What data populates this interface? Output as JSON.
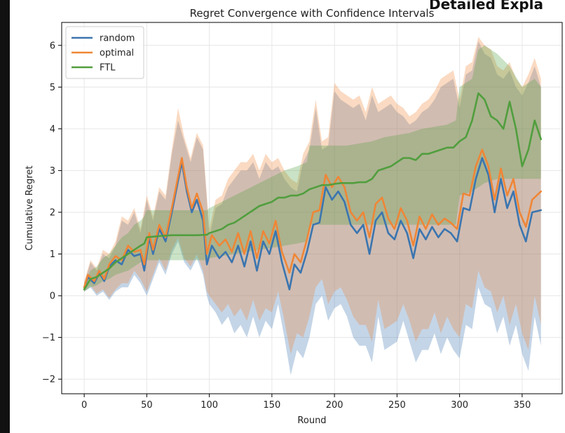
{
  "header_partial": "Detailed Expla",
  "chart_data": {
    "type": "line",
    "title": "Regret Convergence with Confidence Intervals",
    "xlabel": "Round",
    "ylabel": "Cumulative Regret",
    "xlim": [
      -18,
      382
    ],
    "ylim": [
      -2.35,
      6.55
    ],
    "xticks": [
      0,
      50,
      100,
      150,
      200,
      250,
      300,
      350
    ],
    "yticks": [
      -2,
      -1,
      0,
      1,
      2,
      3,
      4,
      5,
      6
    ],
    "xtick_labels": [
      "0",
      "50",
      "100",
      "150",
      "200",
      "250",
      "300",
      "350"
    ],
    "ytick_labels": [
      "−2",
      "−1",
      "0",
      "1",
      "2",
      "3",
      "4",
      "5",
      "6"
    ],
    "grid": true,
    "legend_position": "top-left",
    "colors": {
      "random": "#3b75af",
      "optimal": "#ef8636",
      "FTL": "#519e3e"
    },
    "series": [
      {
        "name": "random",
        "x": [
          0,
          3,
          8,
          12,
          16,
          20,
          25,
          30,
          35,
          40,
          45,
          48,
          52,
          55,
          60,
          65,
          70,
          75,
          78,
          82,
          86,
          90,
          95,
          98,
          102,
          108,
          113,
          118,
          123,
          128,
          133,
          138,
          143,
          148,
          153,
          158,
          164,
          168,
          173,
          178,
          183,
          188,
          193,
          198,
          203,
          208,
          213,
          218,
          223,
          228,
          233,
          238,
          243,
          248,
          253,
          258,
          263,
          268,
          273,
          278,
          283,
          288,
          293,
          298,
          303,
          308,
          313,
          318,
          323,
          328,
          333,
          338,
          343,
          348,
          353,
          358,
          365
        ],
        "y": [
          0.2,
          0.45,
          0.3,
          0.55,
          0.35,
          0.7,
          0.85,
          0.75,
          1.1,
          0.95,
          1.0,
          0.6,
          1.4,
          1.0,
          1.6,
          1.3,
          2.0,
          2.75,
          3.2,
          2.5,
          2.0,
          2.3,
          1.8,
          0.75,
          1.2,
          0.9,
          1.05,
          0.8,
          1.2,
          0.7,
          1.3,
          0.6,
          1.3,
          1.0,
          1.55,
          0.8,
          0.15,
          0.75,
          0.55,
          1.05,
          1.7,
          1.75,
          2.6,
          2.3,
          2.5,
          2.25,
          1.7,
          1.5,
          1.7,
          1.0,
          1.8,
          2.0,
          1.5,
          1.35,
          1.8,
          1.5,
          0.9,
          1.6,
          1.35,
          1.65,
          1.4,
          1.6,
          1.5,
          1.3,
          2.1,
          2.05,
          2.8,
          3.3,
          2.9,
          2.0,
          2.8,
          2.1,
          2.5,
          1.7,
          1.3,
          2.0,
          2.05
        ]
      },
      {
        "name": "optimal",
        "x": [
          0,
          3,
          8,
          12,
          16,
          20,
          25,
          30,
          35,
          40,
          45,
          48,
          52,
          55,
          60,
          65,
          70,
          75,
          78,
          82,
          86,
          90,
          95,
          98,
          102,
          108,
          113,
          118,
          123,
          128,
          133,
          138,
          143,
          148,
          153,
          158,
          164,
          168,
          173,
          178,
          183,
          188,
          193,
          198,
          203,
          208,
          213,
          218,
          223,
          228,
          233,
          238,
          243,
          248,
          253,
          258,
          263,
          268,
          273,
          278,
          283,
          288,
          293,
          298,
          303,
          308,
          313,
          318,
          323,
          328,
          333,
          338,
          343,
          348,
          353,
          358,
          365
        ],
        "y": [
          0.2,
          0.5,
          0.35,
          0.6,
          0.4,
          0.75,
          0.95,
          0.85,
          1.2,
          1.05,
          1.1,
          0.75,
          1.5,
          1.1,
          1.7,
          1.4,
          2.1,
          2.85,
          3.3,
          2.6,
          2.1,
          2.45,
          2.0,
          1.0,
          1.45,
          1.2,
          1.35,
          1.05,
          1.5,
          1.0,
          1.55,
          0.9,
          1.55,
          1.25,
          1.8,
          1.05,
          0.55,
          1.0,
          0.8,
          1.35,
          2.0,
          2.05,
          2.9,
          2.6,
          2.85,
          2.6,
          2.0,
          1.8,
          2.0,
          1.4,
          2.2,
          2.35,
          1.85,
          1.6,
          2.1,
          1.8,
          1.2,
          1.9,
          1.6,
          1.95,
          1.7,
          1.85,
          1.75,
          1.6,
          2.45,
          2.4,
          3.1,
          3.5,
          3.1,
          2.3,
          3.05,
          2.4,
          2.8,
          2.0,
          1.65,
          2.3,
          2.5
        ]
      },
      {
        "name": "FTL",
        "x": [
          0,
          5,
          10,
          15,
          20,
          25,
          30,
          35,
          40,
          45,
          48,
          50,
          60,
          70,
          80,
          90,
          98,
          100,
          105,
          110,
          115,
          120,
          125,
          130,
          135,
          140,
          145,
          150,
          155,
          160,
          165,
          170,
          175,
          180,
          185,
          190,
          195,
          200,
          205,
          210,
          215,
          220,
          225,
          230,
          235,
          240,
          245,
          250,
          255,
          260,
          265,
          270,
          275,
          280,
          285,
          290,
          295,
          300,
          305,
          310,
          315,
          320,
          325,
          330,
          335,
          340,
          345,
          350,
          355,
          360,
          365
        ],
        "y": [
          0.15,
          0.4,
          0.45,
          0.55,
          0.65,
          0.8,
          0.9,
          1.0,
          1.1,
          1.2,
          1.25,
          1.4,
          1.43,
          1.45,
          1.45,
          1.45,
          1.46,
          1.5,
          1.55,
          1.6,
          1.7,
          1.75,
          1.85,
          1.95,
          2.05,
          2.15,
          2.2,
          2.25,
          2.35,
          2.35,
          2.4,
          2.4,
          2.45,
          2.55,
          2.6,
          2.65,
          2.65,
          2.68,
          2.7,
          2.7,
          2.7,
          2.72,
          2.72,
          2.8,
          3.0,
          3.05,
          3.1,
          3.2,
          3.3,
          3.3,
          3.25,
          3.4,
          3.4,
          3.45,
          3.5,
          3.55,
          3.55,
          3.7,
          3.8,
          4.2,
          4.85,
          4.7,
          4.3,
          4.2,
          4.0,
          4.65,
          4.0,
          3.1,
          3.5,
          4.2,
          3.75
        ]
      }
    ],
    "bands": [
      {
        "name": "random",
        "x": [
          0,
          5,
          10,
          15,
          20,
          25,
          30,
          35,
          40,
          45,
          50,
          55,
          60,
          65,
          70,
          75,
          80,
          85,
          90,
          95,
          98,
          100,
          105,
          110,
          115,
          120,
          125,
          130,
          135,
          140,
          145,
          150,
          155,
          160,
          165,
          170,
          175,
          180,
          185,
          190,
          195,
          200,
          205,
          210,
          215,
          220,
          225,
          230,
          235,
          240,
          245,
          250,
          255,
          260,
          265,
          270,
          275,
          280,
          285,
          290,
          295,
          300,
          305,
          310,
          315,
          320,
          325,
          330,
          335,
          340,
          345,
          350,
          355,
          360,
          365
        ],
        "lower": [
          0.1,
          0.2,
          0.0,
          0.1,
          -0.1,
          0.1,
          0.2,
          0.2,
          0.5,
          0.3,
          0.0,
          0.4,
          0.8,
          0.5,
          1.0,
          1.3,
          0.8,
          0.6,
          0.9,
          0.5,
          0.0,
          -0.2,
          -0.4,
          -0.7,
          -0.5,
          -0.9,
          -0.7,
          -1.0,
          -0.5,
          -1.0,
          -0.6,
          -0.8,
          -0.2,
          -1.0,
          -1.9,
          -1.3,
          -1.5,
          -1.0,
          -0.2,
          0.0,
          -0.6,
          -0.3,
          -0.2,
          -0.5,
          -1.0,
          -1.2,
          -1.2,
          -1.6,
          -0.5,
          -1.3,
          -1.2,
          -1.1,
          -0.6,
          -1.1,
          -1.6,
          -1.3,
          -1.3,
          -0.9,
          -1.4,
          -1.0,
          -1.3,
          -1.5,
          -0.7,
          -0.8,
          0.2,
          -0.2,
          -0.3,
          -0.9,
          -0.5,
          -1.2,
          -0.7,
          -1.4,
          -1.8,
          -0.5,
          -1.2
        ],
        "upper": [
          0.3,
          0.8,
          0.6,
          1.0,
          0.9,
          1.2,
          1.8,
          1.7,
          2.0,
          1.5,
          2.3,
          1.8,
          2.5,
          2.3,
          3.4,
          4.2,
          3.7,
          3.2,
          3.8,
          3.5,
          2.3,
          1.4,
          2.1,
          2.2,
          2.6,
          2.8,
          3.0,
          3.0,
          3.2,
          2.8,
          3.2,
          3.0,
          3.1,
          2.8,
          2.6,
          2.5,
          3.2,
          3.5,
          4.5,
          3.5,
          3.6,
          4.9,
          4.7,
          4.6,
          4.5,
          4.6,
          4.2,
          4.8,
          4.4,
          4.5,
          4.6,
          4.4,
          4.3,
          4.1,
          4.2,
          4.4,
          4.5,
          4.7,
          5.0,
          5.1,
          5.2,
          4.5,
          5.3,
          5.4,
          6.1,
          5.8,
          5.7,
          5.3,
          5.2,
          5.4,
          5.0,
          4.8,
          5.1,
          5.5,
          5.0
        ]
      },
      {
        "name": "optimal",
        "x": [
          0,
          5,
          10,
          15,
          20,
          25,
          30,
          35,
          40,
          45,
          50,
          55,
          60,
          65,
          70,
          75,
          80,
          85,
          90,
          95,
          98,
          100,
          105,
          110,
          115,
          120,
          125,
          130,
          135,
          140,
          145,
          150,
          155,
          160,
          165,
          170,
          175,
          180,
          185,
          190,
          195,
          200,
          205,
          210,
          215,
          220,
          225,
          230,
          235,
          240,
          245,
          250,
          255,
          260,
          265,
          270,
          275,
          280,
          285,
          290,
          295,
          300,
          305,
          310,
          315,
          320,
          325,
          330,
          335,
          340,
          345,
          350,
          355,
          360,
          365
        ],
        "lower": [
          0.1,
          0.25,
          0.05,
          0.15,
          -0.05,
          0.15,
          0.3,
          0.3,
          0.6,
          0.4,
          0.1,
          0.5,
          0.9,
          0.6,
          1.1,
          1.4,
          0.9,
          0.7,
          1.0,
          0.6,
          0.1,
          0.0,
          -0.2,
          -0.4,
          -0.2,
          -0.5,
          -0.3,
          -0.6,
          -0.1,
          -0.6,
          -0.3,
          -0.4,
          0.1,
          -0.6,
          -1.4,
          -0.9,
          -1.0,
          -0.5,
          0.2,
          0.4,
          -0.2,
          0.1,
          0.2,
          -0.1,
          -0.5,
          -0.7,
          -0.7,
          -1.1,
          -0.1,
          -0.8,
          -0.7,
          -0.6,
          -0.2,
          -0.6,
          -1.1,
          -0.8,
          -0.8,
          -0.4,
          -0.9,
          -0.5,
          -0.8,
          -1.0,
          -0.2,
          -0.3,
          0.6,
          0.2,
          0.1,
          -0.4,
          0.0,
          -0.7,
          -0.2,
          -0.9,
          -1.3,
          0.0,
          -0.7
        ],
        "upper": [
          0.35,
          0.85,
          0.65,
          1.1,
          1.0,
          1.3,
          1.9,
          1.8,
          2.1,
          1.6,
          2.4,
          1.9,
          2.6,
          2.4,
          3.5,
          4.5,
          3.8,
          3.3,
          3.9,
          3.6,
          2.4,
          1.6,
          2.3,
          2.4,
          2.8,
          3.0,
          3.2,
          3.2,
          3.4,
          3.0,
          3.4,
          3.2,
          3.3,
          3.0,
          2.8,
          2.7,
          3.4,
          3.7,
          4.7,
          3.7,
          3.8,
          5.1,
          4.9,
          4.8,
          4.7,
          4.8,
          4.4,
          5.0,
          4.6,
          4.7,
          4.8,
          4.6,
          4.5,
          4.3,
          4.4,
          4.6,
          4.7,
          4.9,
          5.2,
          5.3,
          5.4,
          4.7,
          5.5,
          5.6,
          6.2,
          6.0,
          5.9,
          5.5,
          5.4,
          5.6,
          5.2,
          5.0,
          5.3,
          5.7,
          5.2
        ]
      },
      {
        "name": "FTL",
        "x": [
          0,
          5,
          10,
          15,
          20,
          25,
          30,
          35,
          40,
          45,
          48,
          50,
          60,
          70,
          80,
          90,
          98,
          100,
          110,
          120,
          130,
          140,
          150,
          160,
          170,
          178,
          180,
          190,
          200,
          210,
          220,
          230,
          240,
          250,
          260,
          270,
          280,
          290,
          297,
          300,
          310,
          315,
          320,
          330,
          340,
          350,
          355,
          360,
          365
        ],
        "lower": [
          0.1,
          0.2,
          0.25,
          0.35,
          0.4,
          0.5,
          0.55,
          0.6,
          0.7,
          0.8,
          0.85,
          0.85,
          0.85,
          0.85,
          0.85,
          0.85,
          0.85,
          0.9,
          0.95,
          1.0,
          1.05,
          1.1,
          1.15,
          1.2,
          1.25,
          1.3,
          1.7,
          1.7,
          1.7,
          1.7,
          1.7,
          1.7,
          1.7,
          1.7,
          1.7,
          1.7,
          1.7,
          1.7,
          1.7,
          2.4,
          2.5,
          2.6,
          2.7,
          2.8,
          2.8,
          2.8,
          2.8,
          2.8,
          2.8
        ],
        "upper": [
          0.3,
          0.6,
          0.7,
          0.9,
          1.0,
          1.2,
          1.4,
          1.5,
          1.7,
          1.8,
          1.9,
          2.05,
          2.05,
          2.05,
          2.05,
          2.05,
          2.05,
          2.1,
          2.25,
          2.4,
          2.55,
          2.7,
          2.85,
          3.0,
          3.1,
          3.2,
          3.6,
          3.6,
          3.6,
          3.6,
          3.65,
          3.7,
          3.8,
          3.85,
          3.9,
          4.0,
          4.05,
          4.1,
          4.2,
          5.0,
          5.2,
          5.9,
          6.0,
          5.8,
          5.5,
          5.0,
          5.1,
          5.2,
          5.0
        ]
      }
    ]
  }
}
